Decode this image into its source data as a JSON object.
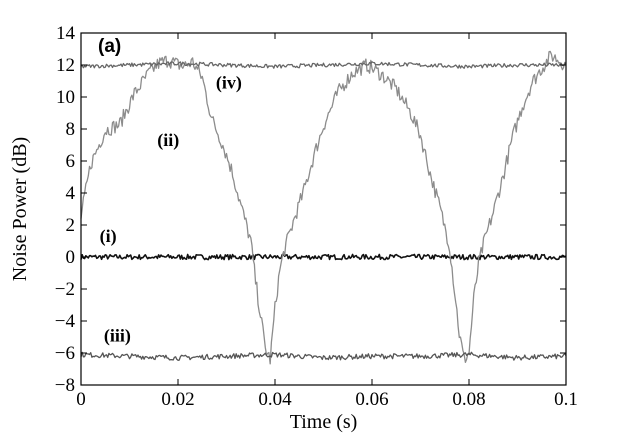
{
  "chart_data": {
    "type": "line",
    "panel_label": "(a)",
    "xlabel": "Time (s)",
    "ylabel": "Noise Power (dB)",
    "xlim": [
      0,
      0.1
    ],
    "ylim": [
      -8,
      14
    ],
    "xticks": [
      0,
      0.02,
      0.04,
      0.06,
      0.08,
      0.1
    ],
    "xtick_labels": [
      "0",
      "0.02",
      "0.04",
      "0.06",
      "0.08",
      "0.1"
    ],
    "yticks": [
      -8,
      -6,
      -4,
      -2,
      0,
      2,
      4,
      6,
      8,
      10,
      12,
      14
    ],
    "ytick_labels": [
      "−8",
      "−6",
      "−4",
      "−2",
      "0",
      "2",
      "4",
      "6",
      "8",
      "10",
      "12",
      "14"
    ],
    "grid": false,
    "series": [
      {
        "name": "(i)",
        "color": "#111111",
        "x": [
          0,
          0.01,
          0.02,
          0.03,
          0.04,
          0.05,
          0.06,
          0.07,
          0.08,
          0.09,
          0.1
        ],
        "y": [
          0,
          0,
          0,
          0,
          0,
          0,
          0,
          0,
          0,
          0,
          0
        ]
      },
      {
        "name": "(ii)",
        "color": "#8c8c8c",
        "x": [
          0,
          0.002,
          0.005,
          0.008,
          0.011,
          0.014,
          0.016,
          0.018,
          0.021,
          0.023,
          0.025,
          0.027,
          0.029,
          0.031,
          0.033,
          0.035,
          0.036,
          0.037,
          0.038,
          0.039,
          0.04,
          0.041,
          0.042,
          0.044,
          0.046,
          0.048,
          0.05,
          0.053,
          0.056,
          0.059,
          0.062,
          0.065,
          0.068,
          0.07,
          0.072,
          0.074,
          0.076,
          0.077,
          0.078,
          0.079,
          0.08,
          0.081,
          0.082,
          0.083,
          0.085,
          0.087,
          0.089,
          0.091,
          0.093,
          0.095,
          0.097,
          0.1
        ],
        "y": [
          2.5,
          5.8,
          7.9,
          8.3,
          10.2,
          11.5,
          12.1,
          12.3,
          11.9,
          12.2,
          11.2,
          8.6,
          7.2,
          5.5,
          3.2,
          1.0,
          -1.5,
          -3.6,
          -5.7,
          -6.4,
          -3.2,
          -0.8,
          0.5,
          2.4,
          4.2,
          6.3,
          8.2,
          10.3,
          11.5,
          12.0,
          11.4,
          10.5,
          9.0,
          7.6,
          5.2,
          3.1,
          0.7,
          -2.0,
          -4.8,
          -6.4,
          -6.0,
          -2.6,
          -0.4,
          0.8,
          2.8,
          5.0,
          7.5,
          9.4,
          10.9,
          11.8,
          12.6,
          12.0
        ]
      },
      {
        "name": "(iii)",
        "color": "#555555",
        "x": [
          0,
          0.01,
          0.02,
          0.03,
          0.04,
          0.05,
          0.06,
          0.07,
          0.08,
          0.09,
          0.1
        ],
        "y": [
          -6.1,
          -6.2,
          -6.3,
          -6.2,
          -6.1,
          -6.3,
          -6.2,
          -6.2,
          -6.1,
          -6.3,
          -6.2
        ]
      },
      {
        "name": "(iv)",
        "color": "#666666",
        "x": [
          0,
          0.01,
          0.02,
          0.03,
          0.04,
          0.05,
          0.06,
          0.07,
          0.08,
          0.09,
          0.1
        ],
        "y": [
          11.9,
          12.0,
          12.1,
          12.0,
          11.9,
          12.0,
          12.1,
          12.0,
          11.9,
          12.0,
          12.0
        ]
      }
    ],
    "annotations": [
      {
        "text": "(iv)",
        "x": 0.0305,
        "y": 10.9
      },
      {
        "text": "(ii)",
        "x": 0.018,
        "y": 7.3
      },
      {
        "text": "(i)",
        "x": 0.0056,
        "y": 1.3
      },
      {
        "text": "(iii)",
        "x": 0.0075,
        "y": -4.9
      }
    ]
  }
}
